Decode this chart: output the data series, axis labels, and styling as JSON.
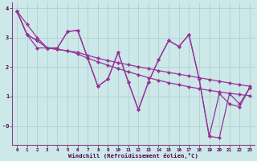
{
  "xlabel": "Windchill (Refroidissement éolien,°C)",
  "bg_color": "#cce8e8",
  "grid_color": "#aacccc",
  "line_color": "#993399",
  "xlim": [
    -0.5,
    23.5
  ],
  "ylim": [
    -0.65,
    4.2
  ],
  "yticks": [
    0,
    1,
    2,
    3,
    4
  ],
  "ytick_labels": [
    "-0",
    "1",
    "2",
    "3",
    "4"
  ],
  "xticks": [
    0,
    1,
    2,
    3,
    4,
    5,
    6,
    7,
    8,
    9,
    10,
    11,
    12,
    13,
    14,
    15,
    16,
    17,
    18,
    19,
    20,
    21,
    22,
    23
  ],
  "line1": [
    3.9,
    3.1,
    2.9,
    2.65,
    2.65,
    3.2,
    3.25,
    2.3,
    1.35,
    1.6,
    2.5,
    1.5,
    0.55,
    1.5,
    2.25,
    2.9,
    2.7,
    3.1,
    1.6,
    -0.35,
    -0.4,
    1.1,
    0.75,
    1.3
  ],
  "line2": [
    3.9,
    3.1,
    2.9,
    2.65,
    2.65,
    3.2,
    3.25,
    2.3,
    1.35,
    1.6,
    2.5,
    1.5,
    0.55,
    1.5,
    2.25,
    2.9,
    2.7,
    3.1,
    1.6,
    -0.35,
    1.1,
    0.75,
    0.65,
    1.3
  ],
  "line3": [
    3.9,
    3.45,
    3.0,
    2.65,
    2.6,
    2.55,
    2.5,
    2.4,
    2.3,
    2.22,
    2.15,
    2.08,
    2.01,
    1.95,
    1.88,
    1.82,
    1.76,
    1.7,
    1.64,
    1.58,
    1.52,
    1.46,
    1.4,
    1.35
  ],
  "line4": [
    3.9,
    3.1,
    2.65,
    2.65,
    2.6,
    2.55,
    2.45,
    2.3,
    2.18,
    2.06,
    1.95,
    1.84,
    1.74,
    1.64,
    1.55,
    1.47,
    1.4,
    1.33,
    1.27,
    1.21,
    1.16,
    1.11,
    1.07,
    1.03
  ]
}
